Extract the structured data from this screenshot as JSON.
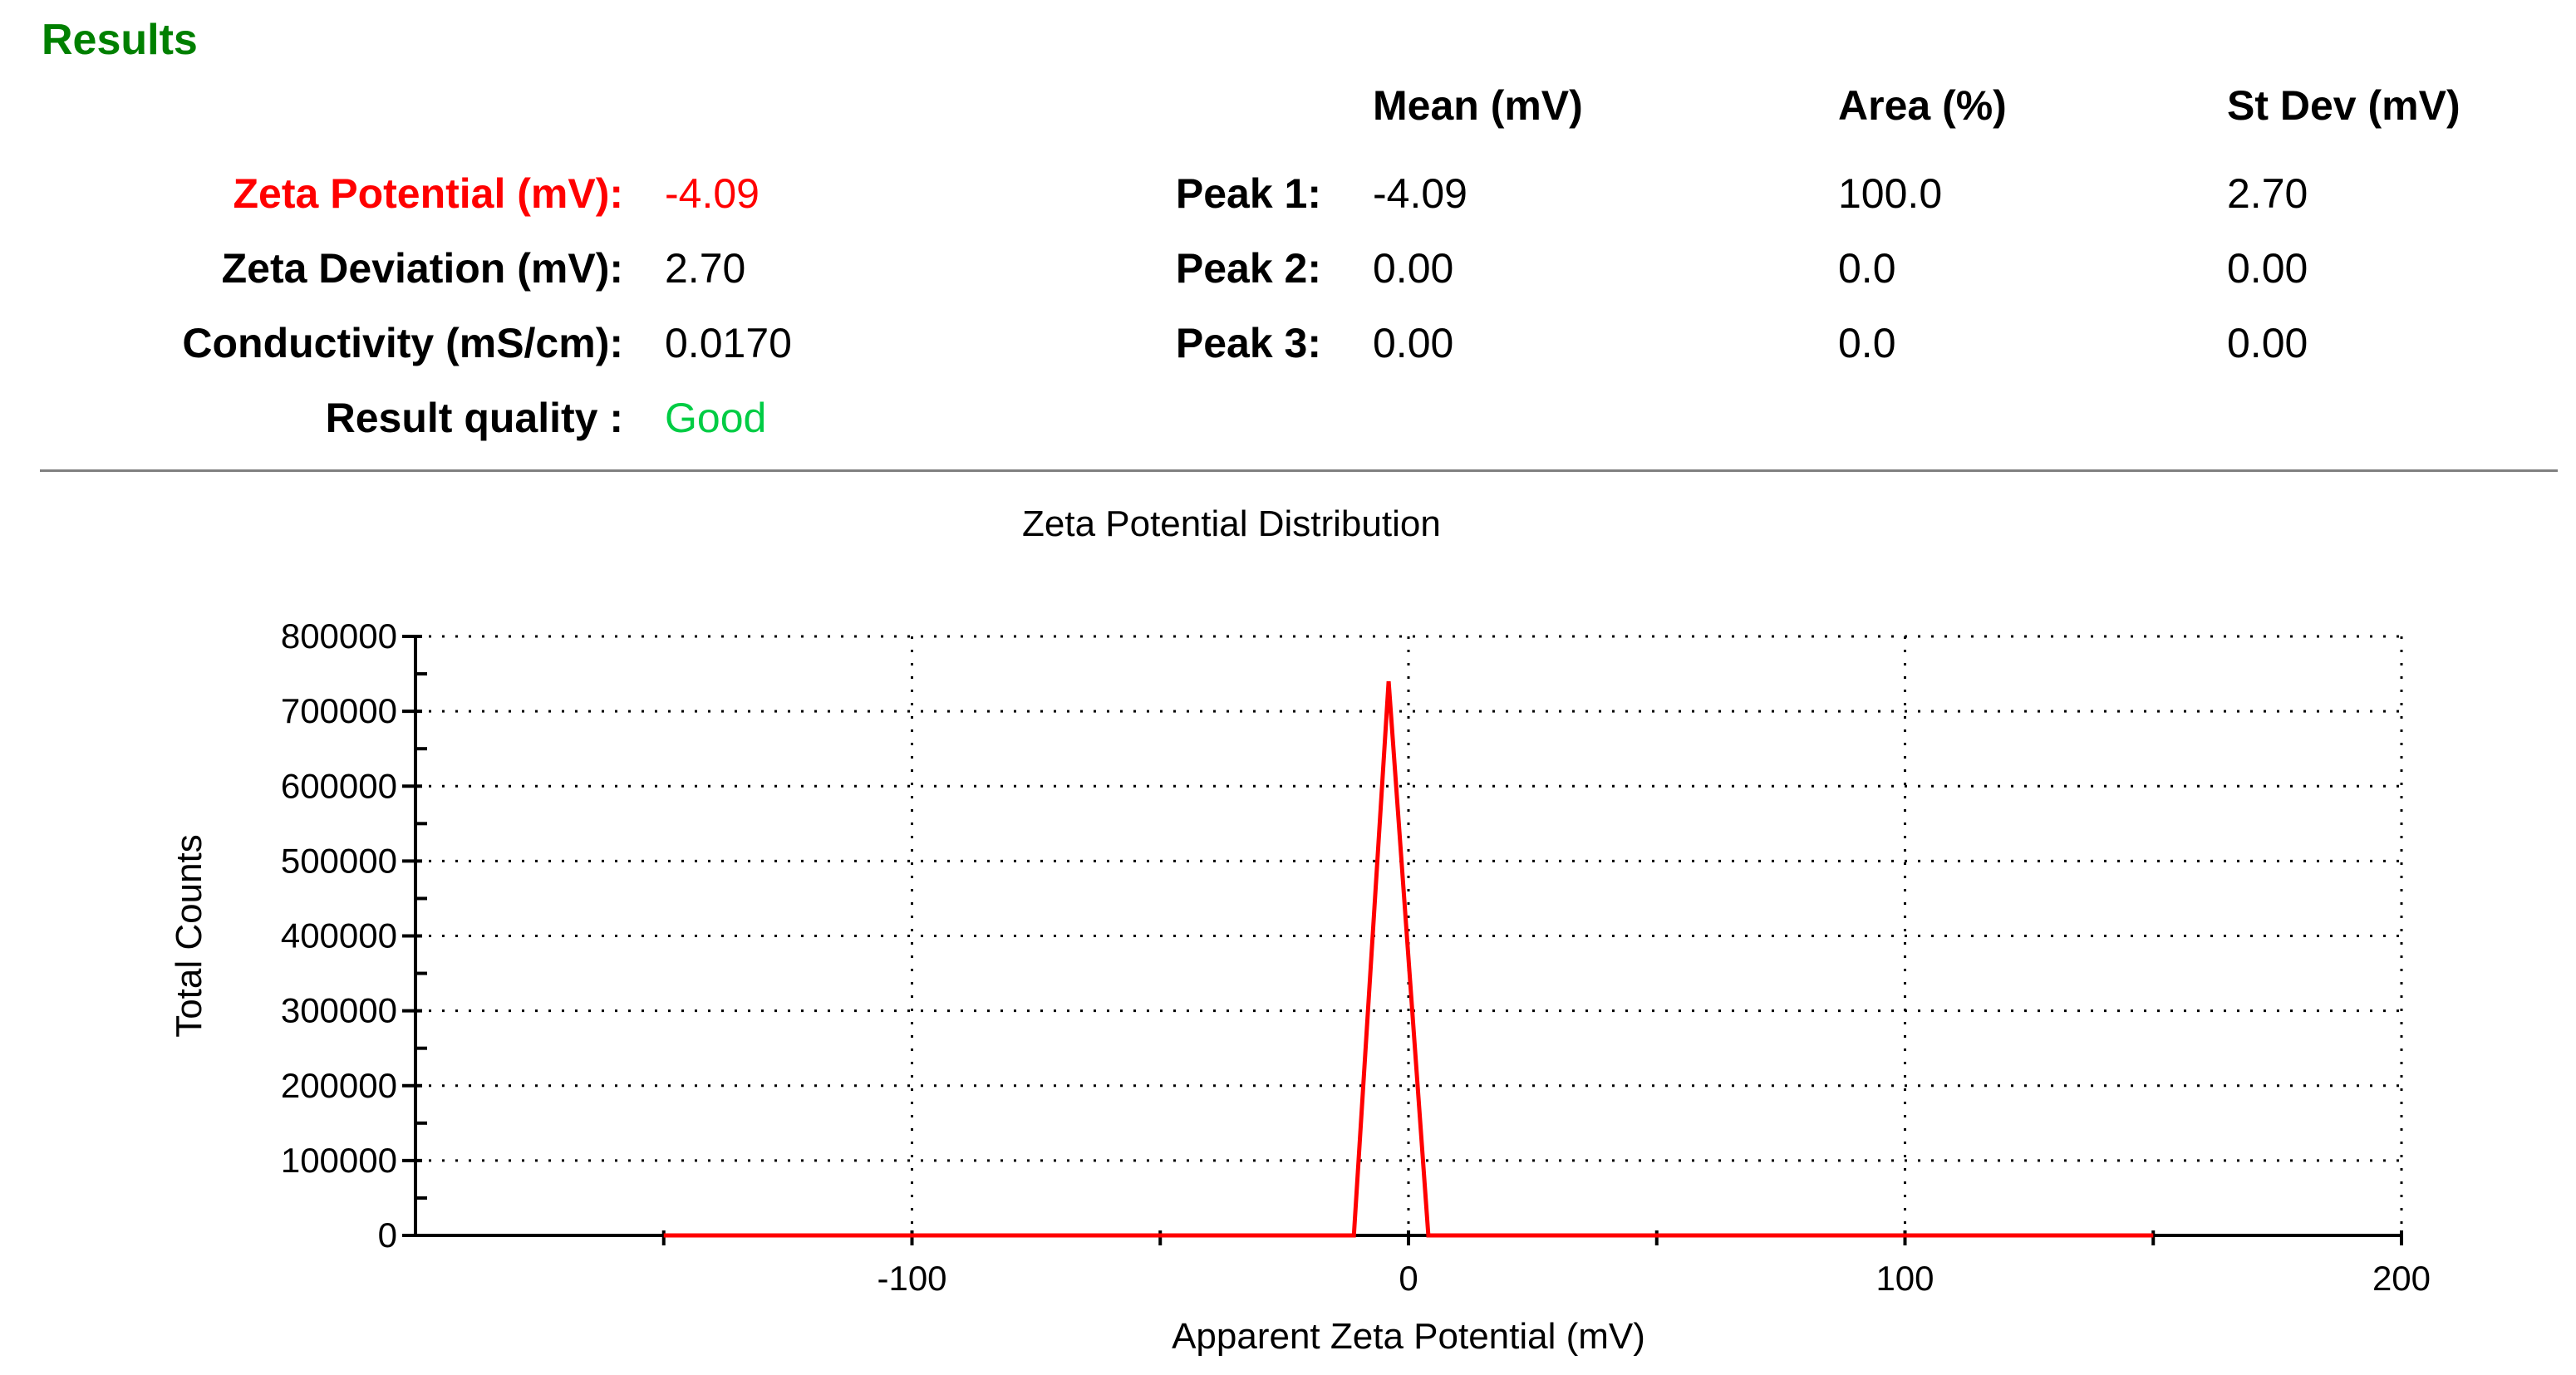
{
  "results": {
    "title": "Results",
    "title_color": "#008000",
    "zeta_potential_label": "Zeta Potential (mV):",
    "zeta_potential_value": "-4.09",
    "zeta_potential_color": "#ff0000",
    "zeta_deviation_label": "Zeta Deviation (mV):",
    "zeta_deviation_value": "2.70",
    "conductivity_label": "Conductivity (mS/cm):",
    "conductivity_value": "0.0170",
    "quality_label": "Result quality :",
    "quality_value": "Good",
    "quality_color": "#00cc44"
  },
  "peaks": {
    "headers": [
      "Mean (mV)",
      "Area (%)",
      "St Dev (mV)"
    ],
    "rows": [
      {
        "label": "Peak 1:",
        "mean": "-4.09",
        "area": "100.0",
        "stdev": "2.70"
      },
      {
        "label": "Peak 2:",
        "mean": "0.00",
        "area": "0.0",
        "stdev": "0.00"
      },
      {
        "label": "Peak 3:",
        "mean": "0.00",
        "area": "0.0",
        "stdev": "0.00"
      }
    ]
  },
  "chart_data": {
    "type": "line",
    "title": "Zeta Potential Distribution",
    "xlabel": "Apparent Zeta Potential (mV)",
    "ylabel": "Total Counts",
    "xlim": [
      -200,
      200
    ],
    "ylim": [
      0,
      800000
    ],
    "x_ticks": [
      -100,
      0,
      100,
      200
    ],
    "y_ticks": [
      0,
      100000,
      200000,
      300000,
      400000,
      500000,
      600000,
      700000,
      800000
    ],
    "grid": true,
    "line_color": "#ff0000",
    "series": [
      {
        "x": [
          -150,
          -11,
          -4,
          4,
          150
        ],
        "y": [
          0,
          0,
          740000,
          0,
          0
        ]
      }
    ]
  }
}
